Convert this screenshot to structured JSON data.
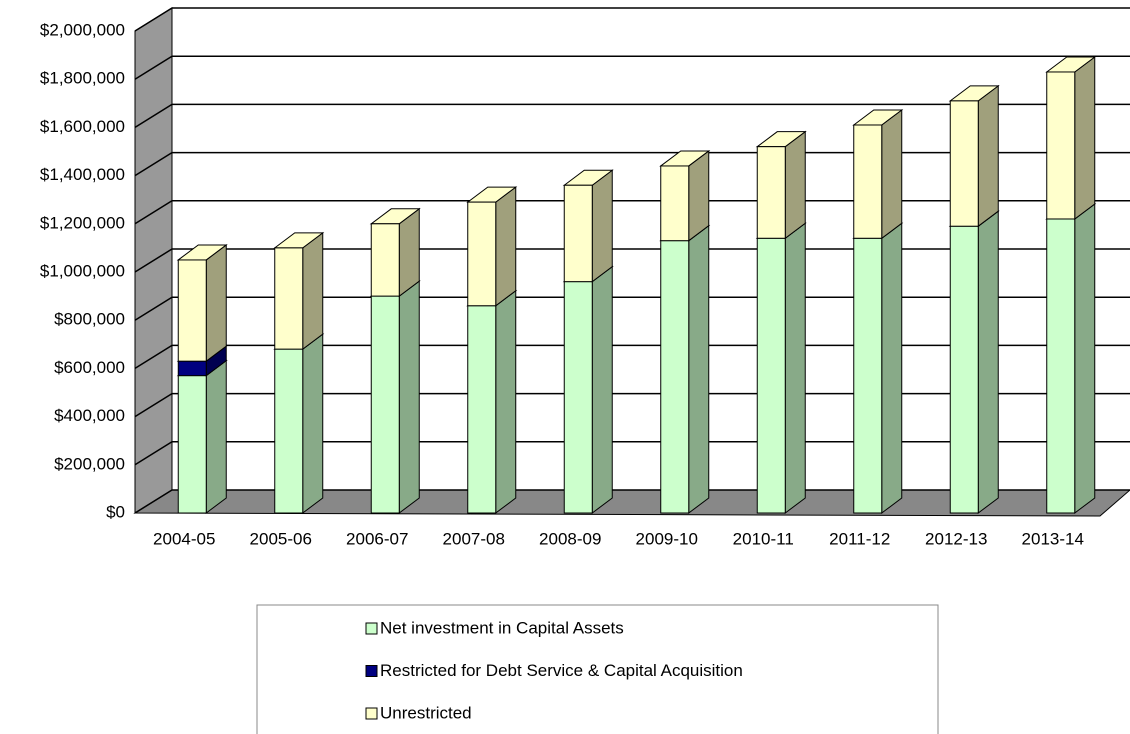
{
  "chart_data": {
    "type": "bar3d_stacked",
    "categories": [
      "2004-05",
      "2005-06",
      "2006-07",
      "2007-08",
      "2008-09",
      "2009-10",
      "2010-11",
      "2011-12",
      "2012-13",
      "2013-14"
    ],
    "series": [
      {
        "name": "Net investment in Capital Assets",
        "color": "#ccffcc",
        "side": "#88aa88",
        "values": [
          570000,
          680000,
          900000,
          860000,
          960000,
          1130000,
          1140000,
          1140000,
          1190000,
          1220000
        ]
      },
      {
        "name": "Restricted for Debt Service & Capital Acquisition",
        "color": "#000080",
        "side": "#000050",
        "values": [
          60000,
          0,
          0,
          0,
          0,
          0,
          0,
          0,
          0,
          0
        ]
      },
      {
        "name": "Unrestricted",
        "color": "#ffffcc",
        "side": "#a0a07c",
        "values": [
          420000,
          420000,
          300000,
          430000,
          400000,
          310000,
          380000,
          470000,
          520000,
          610000
        ]
      }
    ],
    "ylim": [
      0,
      2000000
    ],
    "yticks": [
      {
        "value": 0,
        "label": "$0"
      },
      {
        "value": 200000,
        "label": "$200,000"
      },
      {
        "value": 400000,
        "label": "$400,000"
      },
      {
        "value": 600000,
        "label": "$600,000"
      },
      {
        "value": 800000,
        "label": "$800,000"
      },
      {
        "value": 1000000,
        "label": "$1,000,000"
      },
      {
        "value": 1200000,
        "label": "$1,200,000"
      },
      {
        "value": 1400000,
        "label": "$1,400,000"
      },
      {
        "value": 1600000,
        "label": "$1,600,000"
      },
      {
        "value": 1800000,
        "label": "$1,800,000"
      },
      {
        "value": 2000000,
        "label": "$2,000,000"
      }
    ],
    "grid": true,
    "legend": "bottom"
  }
}
